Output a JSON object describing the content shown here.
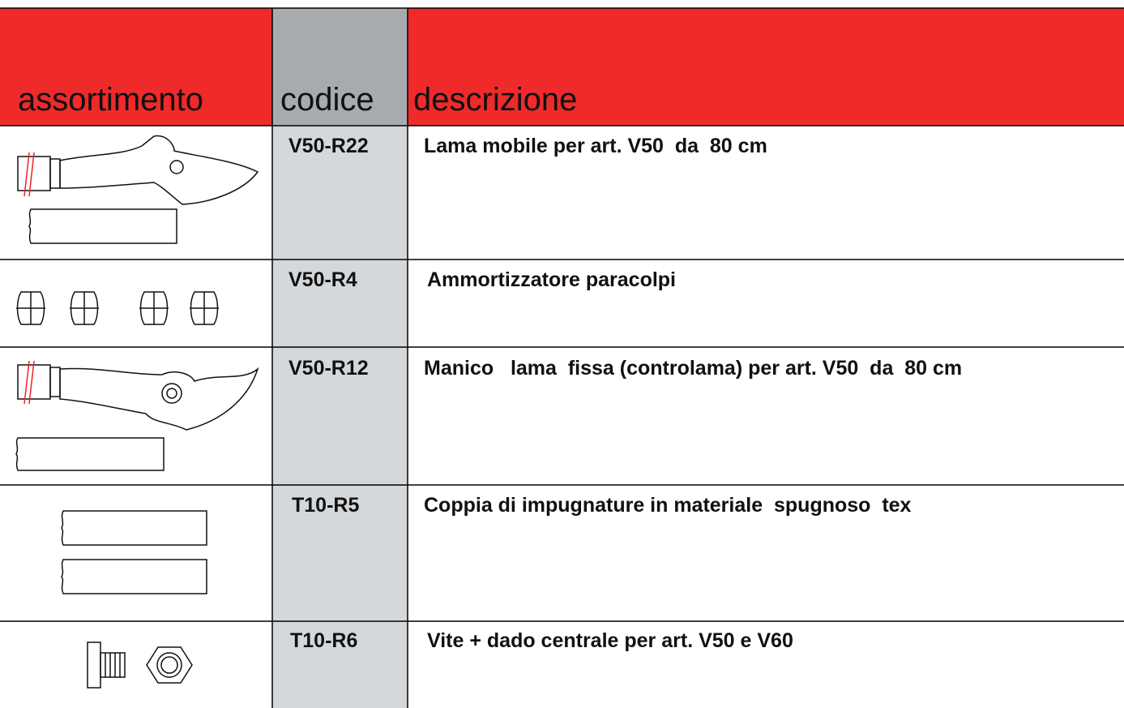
{
  "header": {
    "columns": [
      "assortimento",
      "codice",
      "descrizione"
    ]
  },
  "table": {
    "rows": [
      {
        "code": "V50-R22",
        "description": "Lama mobile per art. V50  da  80 cm"
      },
      {
        "code": "V50-R4",
        "description": "Ammortizzatore paracolpi"
      },
      {
        "code": "V50-R12",
        "description": "Manico   lama  fissa (controlama) per art. V50  da  80 cm"
      },
      {
        "code": "T10-R5",
        "description": "Coppia di impugnature in materiale  spugnoso  tex"
      },
      {
        "code": "T10-R6",
        "description": "Vite + dado centrale per art. V50 e V60"
      }
    ]
  }
}
